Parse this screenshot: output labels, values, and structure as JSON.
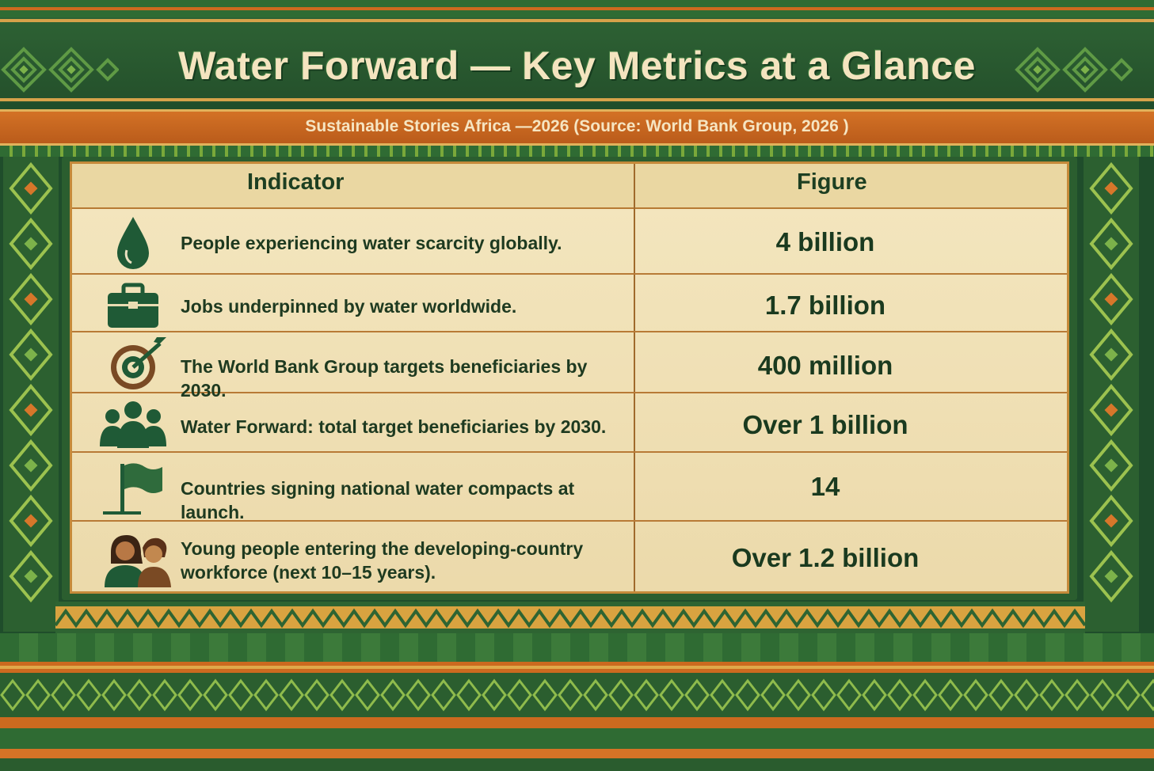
{
  "title": "Water Forward — Key Metrics at a Glance",
  "subtitle": "Sustainable Stories Africa —2026 (Source: World Bank Group, 2026 )",
  "table": {
    "headers": {
      "indicator": "Indicator",
      "figure": "Figure"
    },
    "rows": [
      {
        "icon": "water-drop-icon",
        "indicator": "People experiencing water scarcity globally.",
        "figure": "4 billion"
      },
      {
        "icon": "briefcase-icon",
        "indicator": "Jobs underpinned by water worldwide.",
        "figure": "1.7 billion"
      },
      {
        "icon": "target-icon",
        "indicator": "The World Bank Group targets beneficiaries by 2030.",
        "figure": "400 million"
      },
      {
        "icon": "people-group-icon",
        "indicator": "Water Forward: total target beneficiaries by 2030.",
        "figure": "Over 1 billion"
      },
      {
        "icon": "flag-icon",
        "indicator": "Countries signing national water compacts at launch.",
        "figure": "14"
      },
      {
        "icon": "young-people-icon",
        "indicator": "Young people entering the developing-country workforce (next 10–15 years).",
        "figure": "Over 1.2 billion"
      }
    ]
  },
  "colors": {
    "dark_green": "#1f4d2b",
    "orange": "#cc6a1f",
    "cream": "#f2e2b4",
    "title_text": "#f4e4bf"
  }
}
